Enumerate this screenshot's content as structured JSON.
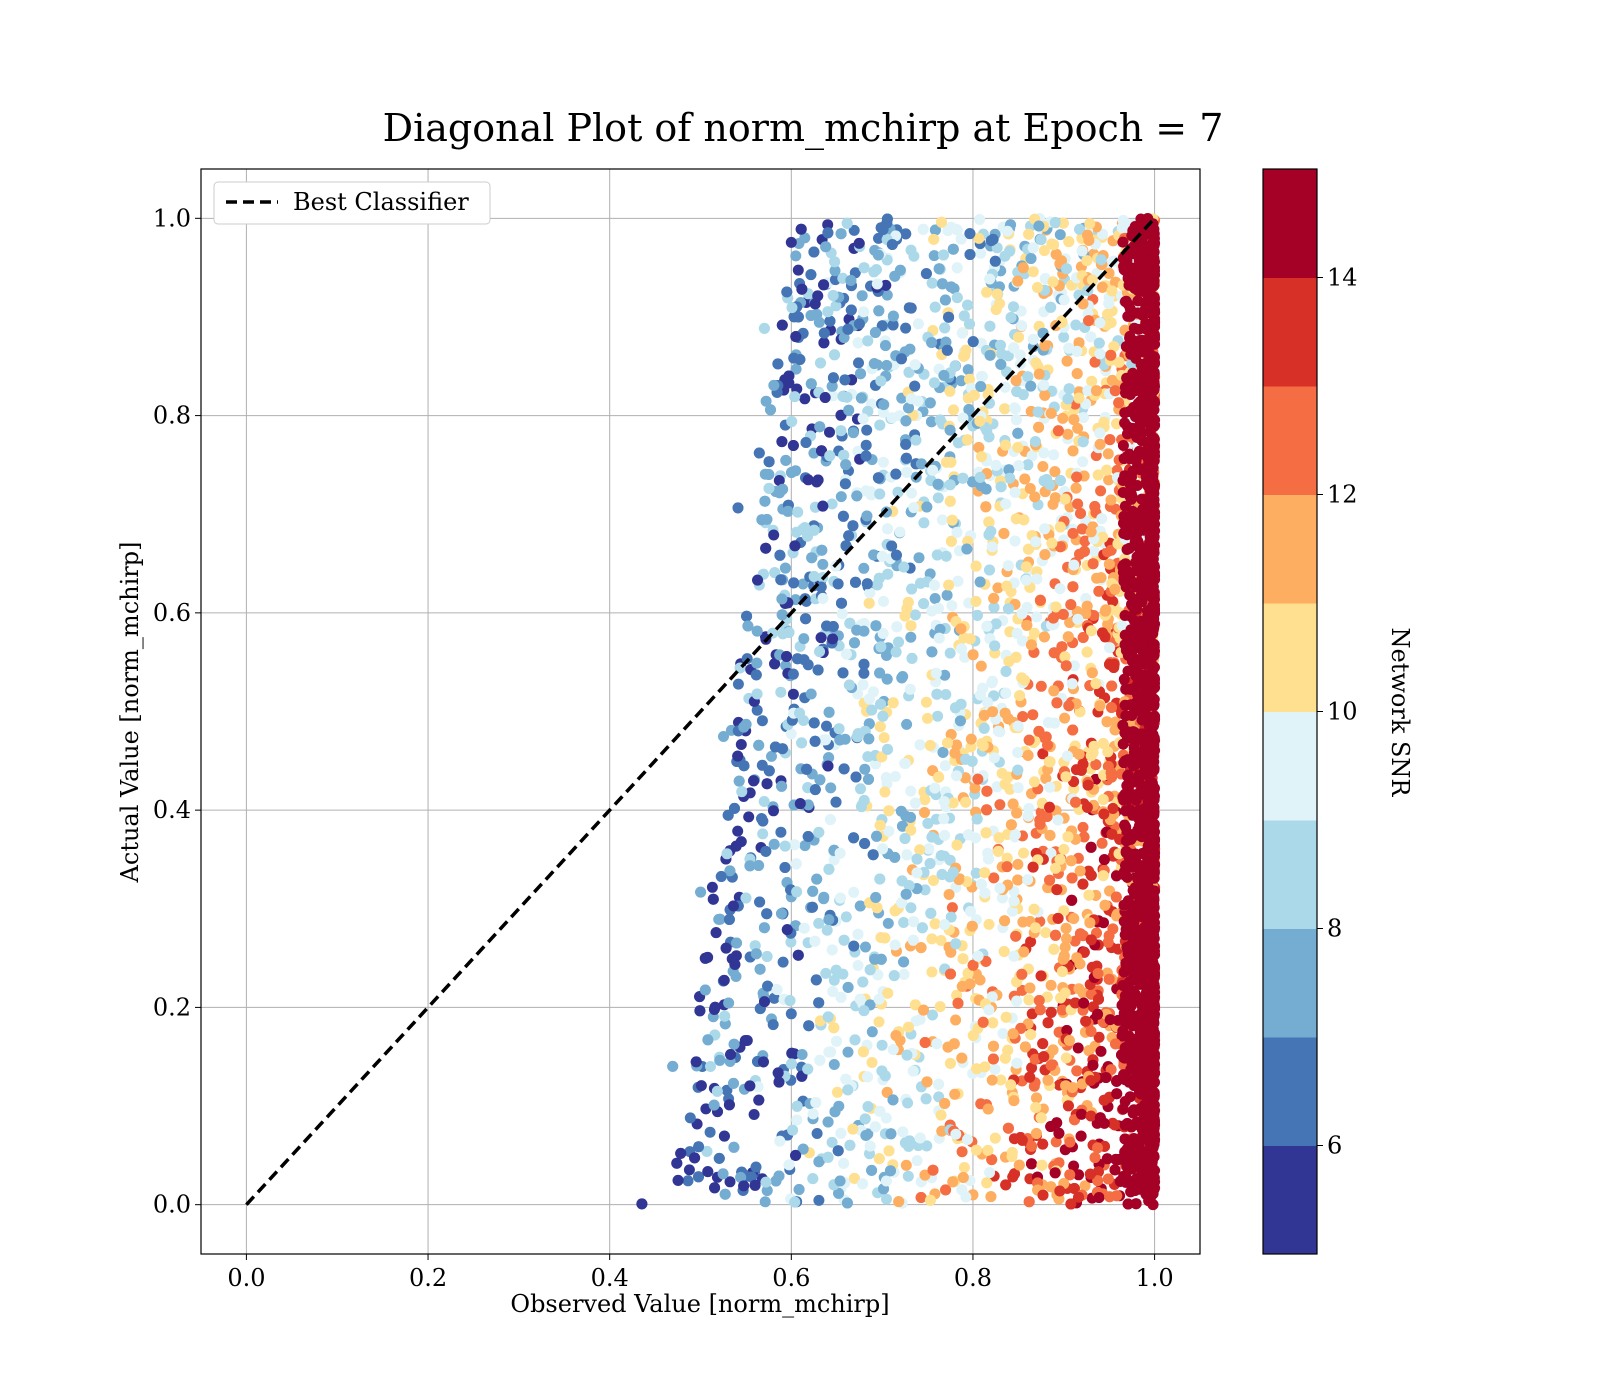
{
  "chart_data": {
    "type": "scatter",
    "title": "Diagonal Plot of norm_mchirp at Epoch = 7",
    "xlabel": "Observed Value [norm_mchirp]",
    "ylabel": "Actual Value [norm_mchirp]",
    "xlim": [
      -0.05,
      1.05
    ],
    "ylim": [
      -0.05,
      1.05
    ],
    "xticks": [
      0.0,
      0.2,
      0.4,
      0.6,
      0.8,
      1.0
    ],
    "yticks": [
      0.0,
      0.2,
      0.4,
      0.6,
      0.8,
      1.0
    ],
    "xtick_labels": [
      "0.0",
      "0.2",
      "0.4",
      "0.6",
      "0.8",
      "1.0"
    ],
    "ytick_labels": [
      "0.0",
      "0.2",
      "0.4",
      "0.6",
      "0.8",
      "1.0"
    ],
    "grid": true,
    "legend": {
      "position": "top-left",
      "entries": [
        "Best Classifier"
      ]
    },
    "diagonal_line": {
      "name": "Best Classifier",
      "x": [
        0.0,
        1.0
      ],
      "y": [
        0.0,
        1.0
      ],
      "style": "dashed",
      "color": "#000000"
    },
    "colorbar": {
      "label": "Network SNR",
      "range": [
        5,
        15
      ],
      "ticks": [
        6,
        8,
        10,
        12,
        14
      ],
      "tick_labels": [
        "6",
        "8",
        "10",
        "12",
        "14"
      ],
      "colors": [
        "#313695",
        "#4575b4",
        "#74add1",
        "#abd9e9",
        "#e0f3f8",
        "#fee090",
        "#fdae61",
        "#f46d43",
        "#d73027",
        "#a50026"
      ]
    },
    "distribution": {
      "observed_value_range": [
        0.43,
        1.0
      ],
      "actual_value_range": [
        0.0,
        1.0
      ],
      "note_trend": "higher SNR points cluster near observed value 1.0 and lower actual values"
    }
  }
}
